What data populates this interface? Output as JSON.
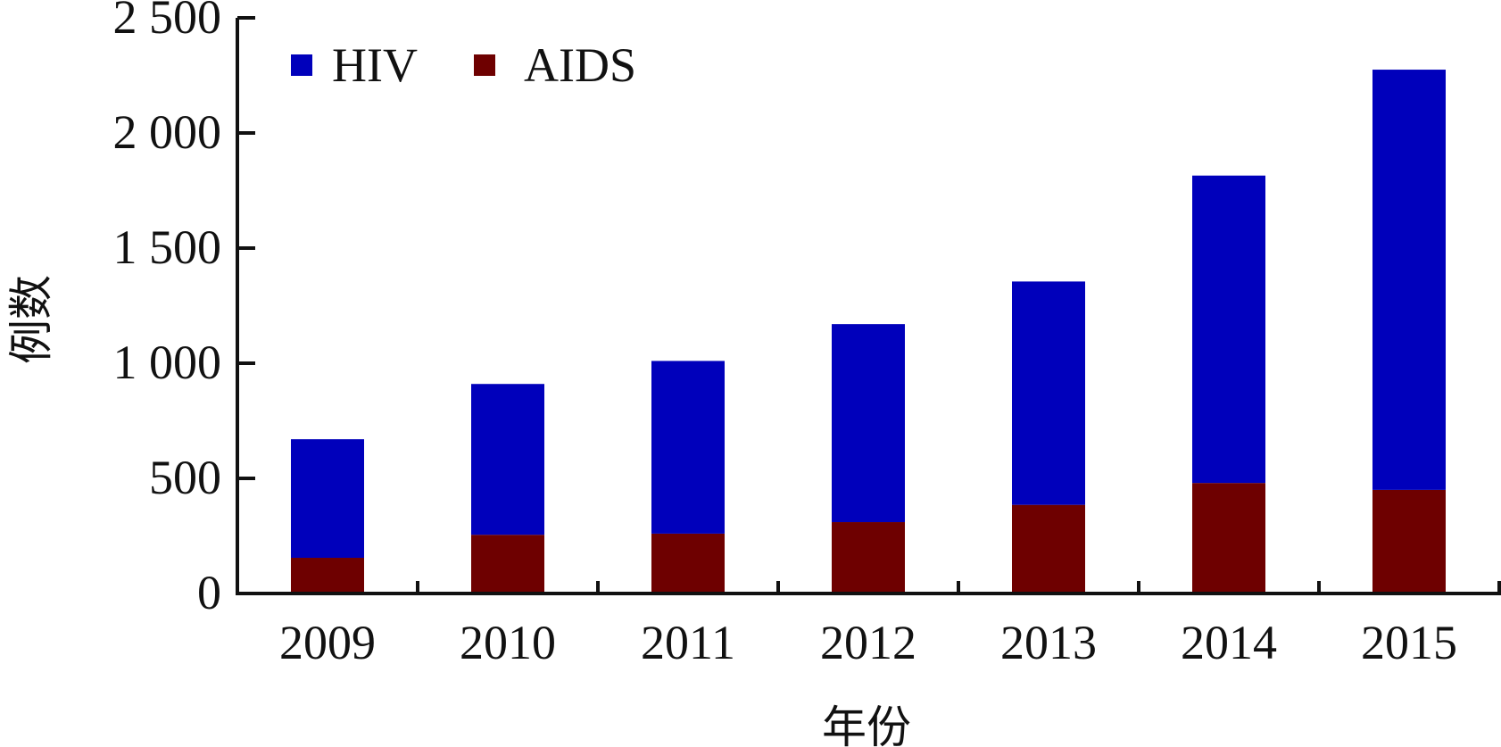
{
  "chart_data": {
    "type": "bar",
    "stacked": true,
    "title": "",
    "xlabel": "年份",
    "ylabel": "例数",
    "categories": [
      "2009",
      "2010",
      "2011",
      "2012",
      "2013",
      "2014",
      "2015"
    ],
    "series": [
      {
        "name": "AIDS",
        "color": "#6e0000",
        "values": [
          155,
          255,
          260,
          310,
          385,
          480,
          450
        ]
      },
      {
        "name": "HIV",
        "color": "#0000bb",
        "values": [
          515,
          655,
          750,
          860,
          970,
          1335,
          1825
        ]
      }
    ],
    "ylim": [
      0,
      2500
    ],
    "yticks": [
      0,
      500,
      1000,
      1500,
      2000,
      2500
    ],
    "ytick_labels": [
      "0",
      "500",
      "1 000",
      "1 500",
      "2 000",
      "2 500"
    ],
    "legend": {
      "position": "top-left",
      "order": [
        "HIV",
        "AIDS"
      ]
    },
    "grid": false
  }
}
